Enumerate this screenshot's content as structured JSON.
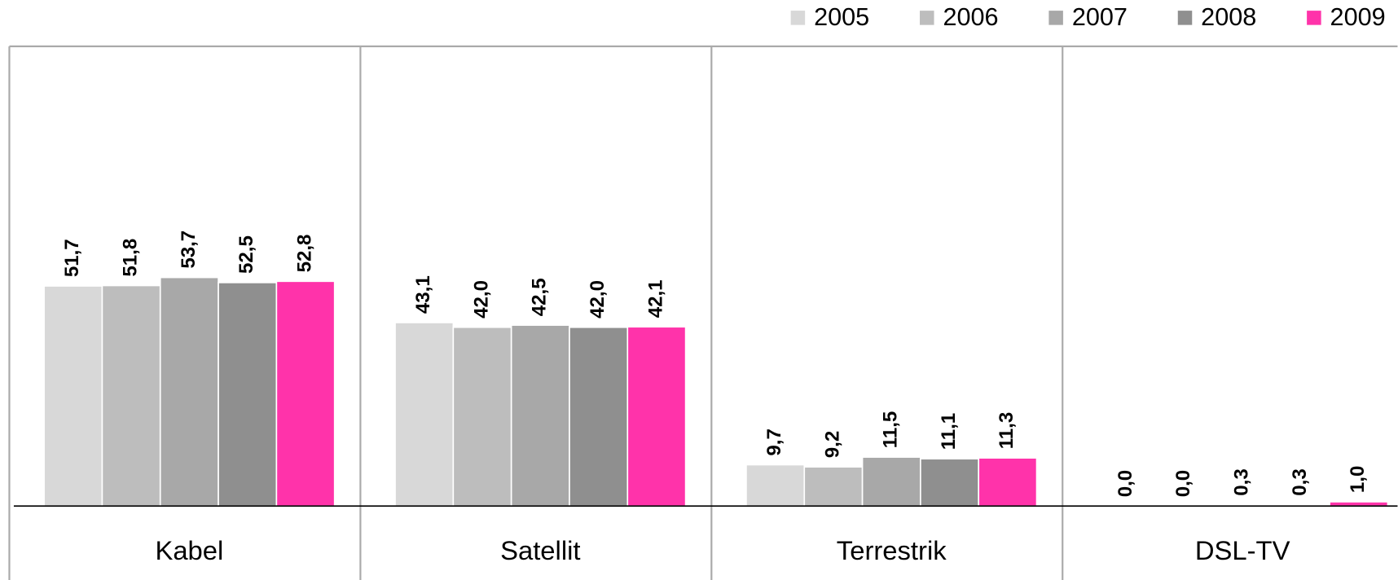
{
  "chart_data": {
    "type": "bar",
    "categories": [
      "Kabel",
      "Satellit",
      "Terrestrik",
      "DSL-TV"
    ],
    "series": [
      {
        "name": "2005",
        "color": "#d8d8d8",
        "values": [
          51.7,
          43.1,
          9.7,
          0.0
        ],
        "value_labels": [
          "51,7",
          "43,1",
          "9,7",
          "0,0"
        ]
      },
      {
        "name": "2006",
        "color": "#bdbdbd",
        "values": [
          51.8,
          42.0,
          9.2,
          0.0
        ],
        "value_labels": [
          "51,8",
          "42,0",
          "9,2",
          "0,0"
        ]
      },
      {
        "name": "2007",
        "color": "#a8a8a8",
        "values": [
          53.7,
          42.5,
          11.5,
          0.3
        ],
        "value_labels": [
          "53,7",
          "42,5",
          "11,5",
          "0,3"
        ]
      },
      {
        "name": "2008",
        "color": "#8f8f8f",
        "values": [
          52.5,
          42.0,
          11.1,
          0.3
        ],
        "value_labels": [
          "52,5",
          "42,0",
          "11,1",
          "0,3"
        ]
      },
      {
        "name": "2009",
        "color": "#ff33aa",
        "values": [
          52.8,
          42.1,
          11.3,
          1.0
        ],
        "value_labels": [
          "52,8",
          "42,1",
          "11,3",
          "1,0"
        ]
      }
    ],
    "ylim": [
      0,
      108
    ],
    "legend": "top-right"
  }
}
